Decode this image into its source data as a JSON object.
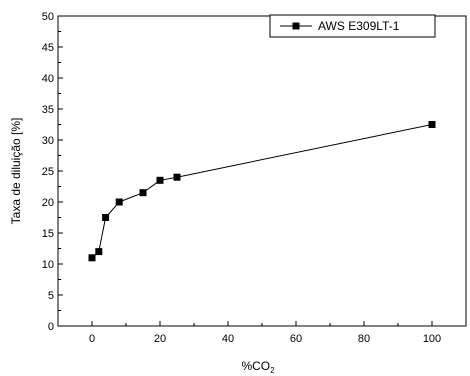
{
  "chart_data": {
    "type": "line",
    "xlabel": "%CO",
    "xlabel_sub": "2",
    "ylabel": "Taxa de diluição [%]",
    "xlim": [
      -10,
      110
    ],
    "ylim": [
      0,
      50
    ],
    "xticks": [
      0,
      20,
      40,
      60,
      80,
      100
    ],
    "yticks": [
      0,
      5,
      10,
      15,
      20,
      25,
      30,
      35,
      40,
      45,
      50
    ],
    "legend_position": "top-right",
    "series": [
      {
        "name": "AWS E309LT-1",
        "color": "#000000",
        "marker": "square",
        "x": [
          0,
          2,
          4,
          8,
          15,
          20,
          25,
          100
        ],
        "y": [
          11,
          12,
          17.5,
          20,
          21.5,
          23.5,
          24,
          32.5
        ]
      }
    ]
  }
}
